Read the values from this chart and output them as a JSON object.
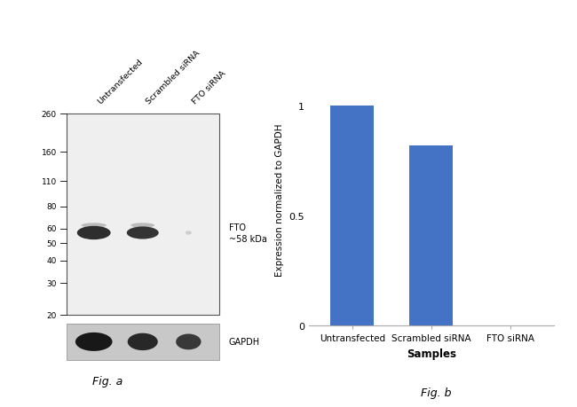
{
  "fig_width": 6.5,
  "fig_height": 4.6,
  "dpi": 100,
  "bar_categories": [
    "Untransfected",
    "Scrambled siRNA",
    "FTO siRNA"
  ],
  "bar_values": [
    1.0,
    0.82,
    0.0
  ],
  "bar_color": "#4472C4",
  "bar_width": 0.55,
  "ylabel": "Expression normalized to GAPDH",
  "xlabel": "Samples",
  "yticks": [
    0,
    0.5,
    1
  ],
  "ylim": [
    0,
    1.15
  ],
  "fig_a_label": "Fig. a",
  "fig_b_label": "Fig. b",
  "wb_ladder_labels": [
    "260",
    "160",
    "110",
    "80",
    "60",
    "50",
    "40",
    "30",
    "20"
  ],
  "fto_label": "FTO\n~58 kDa",
  "gapdh_label": "GAPDH",
  "lane_labels": [
    "Untransfected",
    "Scrambled siRNA",
    "FTO siRNA"
  ],
  "blot_bg": "#f0efef",
  "gapdh_bg": "#c8c8c8",
  "background_color": "#ffffff"
}
